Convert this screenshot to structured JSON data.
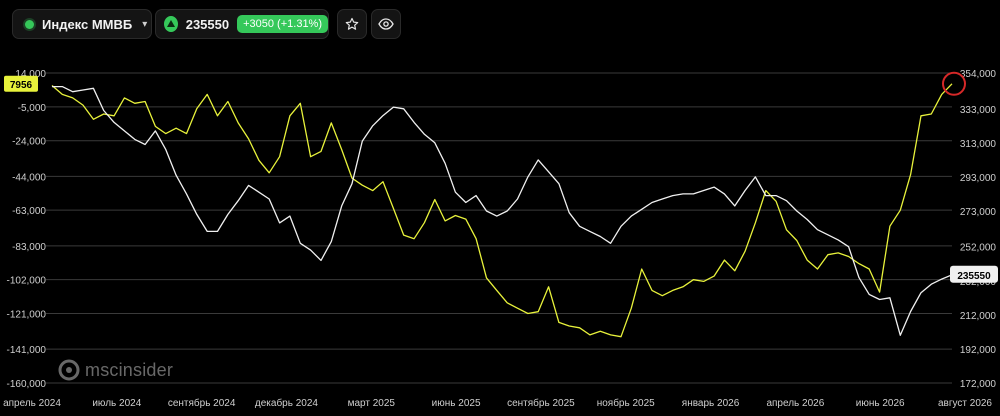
{
  "header": {
    "index_name": "Индекс ММВБ",
    "price": "235550",
    "change": "+3050 (+1.31%)",
    "favorite_label": "",
    "watch_label": ""
  },
  "watermark": "mscinsider",
  "colors": {
    "background": "#000000",
    "left_series": "#e8f23b",
    "right_series": "#f0f0f0",
    "accent_green": "#35c85a",
    "highlight_ring": "#d62828"
  },
  "chart_data": {
    "type": "line",
    "x_tick_labels": [
      "апрель 2024",
      "июль 2024",
      "сентябрь 2024",
      "декабрь 2024",
      "март 2025",
      "июнь 2025",
      "сентябрь 2025",
      "ноябрь 2025",
      "январь 2026",
      "апрель 2026",
      "июнь 2026",
      "август 2026"
    ],
    "y_left": {
      "ticks": [
        14000,
        -5000,
        -24000,
        -44000,
        -63000,
        -83000,
        -102000,
        -121000,
        -141000,
        -160000
      ],
      "tick_labels": [
        "14,000",
        "-5,000",
        "-24,000",
        "-44,000",
        "-63,000",
        "-83,000",
        "-102,000",
        "-121,000",
        "-141,000",
        "-160,000"
      ],
      "range": [
        -160000,
        14000
      ],
      "last_value_label": "7956"
    },
    "y_right": {
      "ticks": [
        354000,
        333000,
        313000,
        293000,
        273000,
        252000,
        232000,
        212000,
        192000,
        172000
      ],
      "tick_labels": [
        "354,000",
        "333,000",
        "313,000",
        "293,000",
        "273,000",
        "252,000",
        "232,000",
        "212,000",
        "192,000",
        "172,000"
      ],
      "range": [
        172000,
        354000
      ],
      "last_value_label": "235550"
    },
    "grid": true,
    "series": [
      {
        "axis": "left",
        "color": "#e8f23b",
        "values": [
          7000,
          2000,
          0,
          -4000,
          -12000,
          -9000,
          -10000,
          0,
          -3000,
          -2000,
          -16000,
          -20000,
          -17000,
          -20000,
          -6000,
          2000,
          -10000,
          -2000,
          -14000,
          -23000,
          -35000,
          -42000,
          -33000,
          -10000,
          -3000,
          -33000,
          -30000,
          -14000,
          -29000,
          -45000,
          -49000,
          -52000,
          -47000,
          -62000,
          -77000,
          -79000,
          -70000,
          -57000,
          -69000,
          -66000,
          -68000,
          -79000,
          -101000,
          -108000,
          -115000,
          -118000,
          -121000,
          -120000,
          -106000,
          -126000,
          -128000,
          -129000,
          -133000,
          -131000,
          -133000,
          -134000,
          -118000,
          -96000,
          -108000,
          -111000,
          -108000,
          -106000,
          -102000,
          -103000,
          -100000,
          -91000,
          -97000,
          -86000,
          -70000,
          -52000,
          -58000,
          -74000,
          -80000,
          -91000,
          -96000,
          -88000,
          -87000,
          -89000,
          -93000,
          -96000,
          -109000,
          -72000,
          -63000,
          -43000,
          -10000,
          -9000,
          2000,
          7956
        ]
      },
      {
        "axis": "right",
        "color": "#f0f0f0",
        "values": [
          346000,
          346000,
          343000,
          344000,
          345000,
          332000,
          325000,
          320000,
          315000,
          312000,
          320000,
          309000,
          294000,
          283000,
          271000,
          261000,
          261000,
          271000,
          279000,
          288000,
          284000,
          280000,
          266000,
          270000,
          254000,
          250000,
          244000,
          255000,
          276000,
          289000,
          314000,
          323000,
          329000,
          334000,
          333000,
          325000,
          318000,
          313000,
          301000,
          284000,
          278000,
          282000,
          273000,
          270000,
          273000,
          280000,
          293000,
          303000,
          296000,
          289000,
          272000,
          264000,
          261000,
          258000,
          254000,
          264000,
          270000,
          274000,
          278000,
          280000,
          282000,
          283000,
          283000,
          285000,
          287000,
          283000,
          276000,
          285000,
          293000,
          282000,
          282000,
          279000,
          273000,
          268000,
          262000,
          259000,
          256000,
          252000,
          234000,
          224000,
          221000,
          222000,
          200000,
          214000,
          225000,
          230000,
          233000,
          235550
        ]
      }
    ]
  }
}
